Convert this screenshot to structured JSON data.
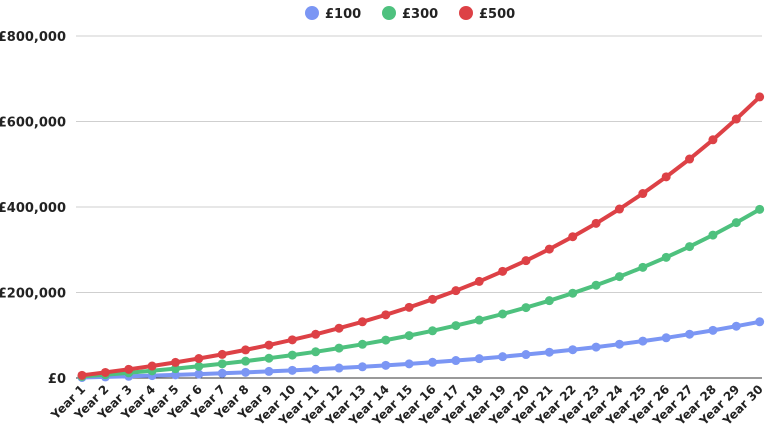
{
  "chart_data": {
    "type": "line",
    "title": "",
    "xlabel": "",
    "ylabel": "",
    "legend_position": "top",
    "grid": "horizontal",
    "ylim": [
      0,
      800000
    ],
    "yticks": [
      0,
      200000,
      400000,
      600000,
      800000
    ],
    "ytick_labels": [
      "£0",
      "£200,000",
      "£400,000",
      "£600,000",
      "£800,000"
    ],
    "categories": [
      "Year 1",
      "Year 2",
      "Year 3",
      "Year 4",
      "Year 5",
      "Year 6",
      "Year 7",
      "Year 8",
      "Year 9",
      "Year 10",
      "Year 11",
      "Year 12",
      "Year 13",
      "Year 14",
      "Year 15",
      "Year 16",
      "Year 17",
      "Year 18",
      "Year 19",
      "Year 20",
      "Year 21",
      "Year 22",
      "Year 23",
      "Year 24",
      "Year 25",
      "Year 26",
      "Year 27",
      "Year 28",
      "Year 29",
      "Year 30"
    ],
    "series": [
      {
        "name": "£100",
        "color": "#7b96f4",
        "values": [
          1250,
          2600,
          4050,
          5600,
          7300,
          9100,
          11050,
          13150,
          15400,
          17850,
          20450,
          23300,
          26300,
          29550,
          33050,
          36800,
          40850,
          45200,
          49900,
          54900,
          60300,
          66100,
          72350,
          79050,
          86300,
          94100,
          102450,
          111450,
          121150,
          131500
        ]
      },
      {
        "name": "£300",
        "color": "#4ec17e",
        "values": [
          3750,
          7800,
          12150,
          16800,
          21900,
          27300,
          33150,
          39450,
          46200,
          53550,
          61350,
          69900,
          78900,
          88650,
          99150,
          110400,
          122550,
          135600,
          149700,
          164700,
          180900,
          198300,
          217050,
          237150,
          258900,
          282300,
          307350,
          334350,
          363450,
          394500
        ]
      },
      {
        "name": "£500",
        "color": "#dd4146",
        "values": [
          6250,
          13000,
          20250,
          28000,
          36500,
          45500,
          55250,
          65750,
          77000,
          89250,
          102250,
          116500,
          131500,
          147750,
          165250,
          184000,
          204250,
          226000,
          249500,
          274500,
          301500,
          330500,
          361750,
          395250,
          431500,
          470500,
          512250,
          557250,
          605750,
          657500
        ]
      }
    ]
  }
}
